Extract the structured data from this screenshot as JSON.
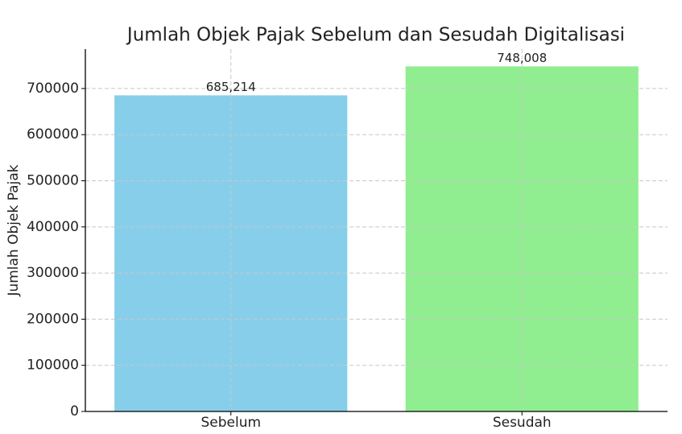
{
  "chart_data": {
    "type": "bar",
    "title": "Jumlah Objek Pajak Sebelum dan Sesudah Digitalisasi",
    "y_label": "Jumlah Objek Pajak",
    "categories": [
      "Sebelum",
      "Sesudah"
    ],
    "values": [
      685214,
      748008
    ],
    "value_labels": [
      "685,214",
      "748,008"
    ],
    "colors": [
      "#87ceeb",
      "#90ee90"
    ],
    "ylim": [
      0,
      785408
    ],
    "yticks": [
      0,
      100000,
      200000,
      300000,
      400000,
      500000,
      600000,
      700000
    ],
    "grid": true
  }
}
